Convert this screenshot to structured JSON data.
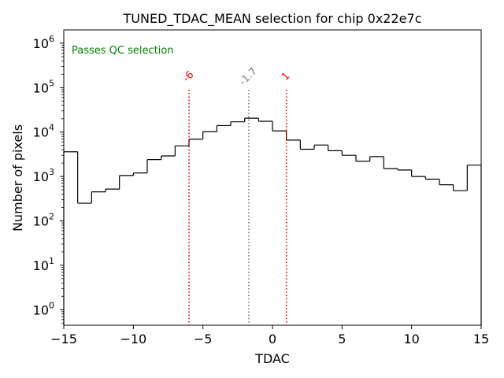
{
  "chart_data": {
    "type": "histogram",
    "title": "TUNED_TDAC_MEAN selection for chip 0x22e7c",
    "xlabel": "TDAC",
    "ylabel": "Number of pixels",
    "xlim": [
      -15,
      15
    ],
    "ylim_log10": [
      -0.35,
      6.3
    ],
    "yscale": "log",
    "x_ticks": [
      -15,
      -10,
      -5,
      0,
      5,
      10,
      15
    ],
    "x_tick_labels": [
      "−15",
      "−10",
      "−5",
      "0",
      "5",
      "10",
      "15"
    ],
    "y_ticks": [
      0,
      1,
      2,
      3,
      4,
      5,
      6
    ],
    "y_tick_labels": [
      {
        "base": "10",
        "exp": "0"
      },
      {
        "base": "10",
        "exp": "1"
      },
      {
        "base": "10",
        "exp": "2"
      },
      {
        "base": "10",
        "exp": "3"
      },
      {
        "base": "10",
        "exp": "4"
      },
      {
        "base": "10",
        "exp": "5"
      },
      {
        "base": "10",
        "exp": "6"
      }
    ],
    "bin_edges": [
      -15,
      -14,
      -13,
      -12,
      -11,
      -10,
      -9,
      -8,
      -7,
      -6,
      -5,
      -4,
      -3,
      -2,
      -1,
      0,
      1,
      2,
      3,
      4,
      5,
      6,
      7,
      8,
      9,
      10,
      11,
      12,
      13,
      14,
      15
    ],
    "counts": [
      3600,
      250,
      450,
      520,
      1050,
      1200,
      2400,
      2900,
      4900,
      6900,
      10200,
      14000,
      17000,
      20500,
      17500,
      10600,
      6600,
      4100,
      5100,
      3800,
      3000,
      2200,
      2800,
      1500,
      1400,
      1000,
      870,
      650,
      480,
      1800
    ],
    "vlines": [
      {
        "x": -6,
        "label": "-6",
        "color": "#ff0000",
        "style": "dotted",
        "label_rotation": -45
      },
      {
        "x": -1.7,
        "label": "-1.7",
        "color": "#808080",
        "style": "dotted",
        "label_rotation": -45
      },
      {
        "x": 1,
        "label": "1",
        "color": "#ff0000",
        "style": "dotted",
        "label_rotation": -45
      }
    ],
    "annotation": {
      "text": "Passes QC selection",
      "color": "#008000",
      "placement": "top-left"
    },
    "line_color": "#000000"
  }
}
